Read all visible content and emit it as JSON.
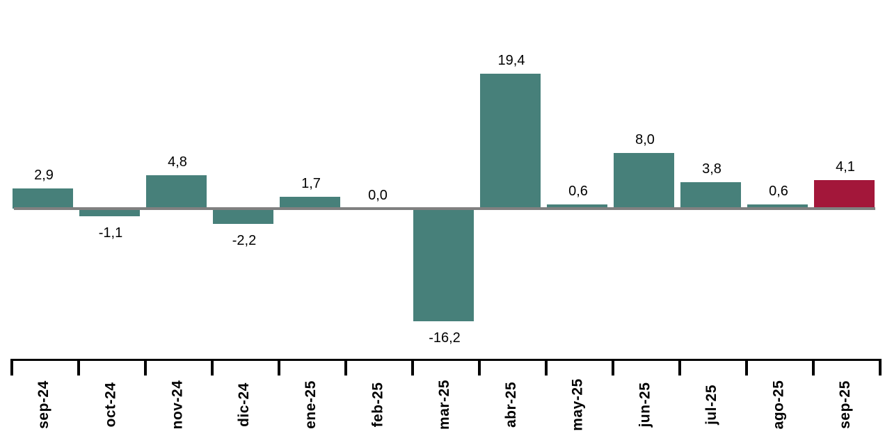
{
  "chart_data": {
    "type": "bar",
    "title": "",
    "xlabel": "",
    "ylabel": "",
    "categories": [
      "sep-24",
      "oct-24",
      "nov-24",
      "dic-24",
      "ene-25",
      "feb-25",
      "mar-25",
      "abr-25",
      "may-25",
      "jun-25",
      "jul-25",
      "ago-25",
      "sep-25"
    ],
    "values": [
      2.9,
      -1.1,
      4.8,
      -2.2,
      1.7,
      0.0,
      -16.2,
      19.4,
      0.6,
      8.0,
      3.8,
      0.6,
      4.1
    ],
    "value_labels": [
      "2,9",
      "-1,1",
      "4,8",
      "-2,2",
      "1,7",
      "0,0",
      "-16,2",
      "19,4",
      "0,6",
      "8,0",
      "3,8",
      "0,6",
      "4,1"
    ],
    "decimal_separator": ",",
    "ylim": [
      -20,
      22
    ],
    "grid": false,
    "legend": false,
    "y_axis_visible": false,
    "x_tick_label_rotation": -90,
    "colors": {
      "bar_default": "#47807A",
      "bar_highlight": "#A3173A",
      "baseline": "#808080",
      "axis": "#000000",
      "text": "#000000",
      "background": "#FFFFFF"
    },
    "highlight_index": 12
  }
}
